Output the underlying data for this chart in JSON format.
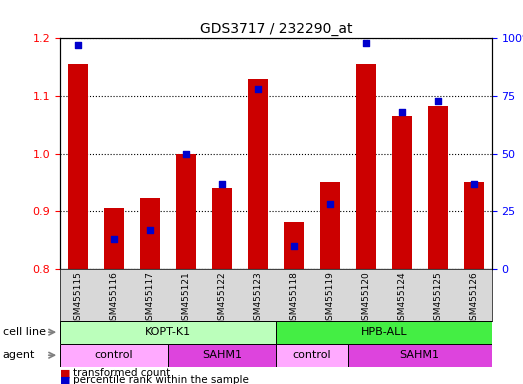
{
  "title": "GDS3717 / 232290_at",
  "samples": [
    "GSM455115",
    "GSM455116",
    "GSM455117",
    "GSM455121",
    "GSM455122",
    "GSM455123",
    "GSM455118",
    "GSM455119",
    "GSM455120",
    "GSM455124",
    "GSM455125",
    "GSM455126"
  ],
  "transformed_count": [
    1.155,
    0.905,
    0.923,
    1.0,
    0.94,
    1.13,
    0.882,
    0.95,
    1.155,
    1.065,
    1.082,
    0.95
  ],
  "percentile_rank": [
    97,
    13,
    17,
    50,
    37,
    78,
    10,
    28,
    98,
    68,
    73,
    37
  ],
  "ylim_left": [
    0.8,
    1.2
  ],
  "ylim_right": [
    0,
    100
  ],
  "yticks_left": [
    0.8,
    0.9,
    1.0,
    1.1,
    1.2
  ],
  "yticks_right": [
    0,
    25,
    50,
    75,
    100
  ],
  "bar_color": "#cc0000",
  "dot_color": "#0000cc",
  "plot_bg_color": "#ffffff",
  "xtick_bg_color": "#d8d8d8",
  "cell_line_kopt_color": "#bbffbb",
  "cell_line_hpb_color": "#44ee44",
  "agent_control_color": "#ffaaff",
  "agent_sahm1_color": "#dd44dd",
  "cell_lines": [
    {
      "label": "KOPT-K1",
      "start": 0,
      "end": 5,
      "color": "#bbffbb"
    },
    {
      "label": "HPB-ALL",
      "start": 6,
      "end": 11,
      "color": "#44ee44"
    }
  ],
  "agents": [
    {
      "label": "control",
      "start": 0,
      "end": 2,
      "color": "#ffaaff"
    },
    {
      "label": "SAHM1",
      "start": 3,
      "end": 5,
      "color": "#dd44dd"
    },
    {
      "label": "control",
      "start": 6,
      "end": 7,
      "color": "#ffaaff"
    },
    {
      "label": "SAHM1",
      "start": 8,
      "end": 11,
      "color": "#dd44dd"
    }
  ]
}
